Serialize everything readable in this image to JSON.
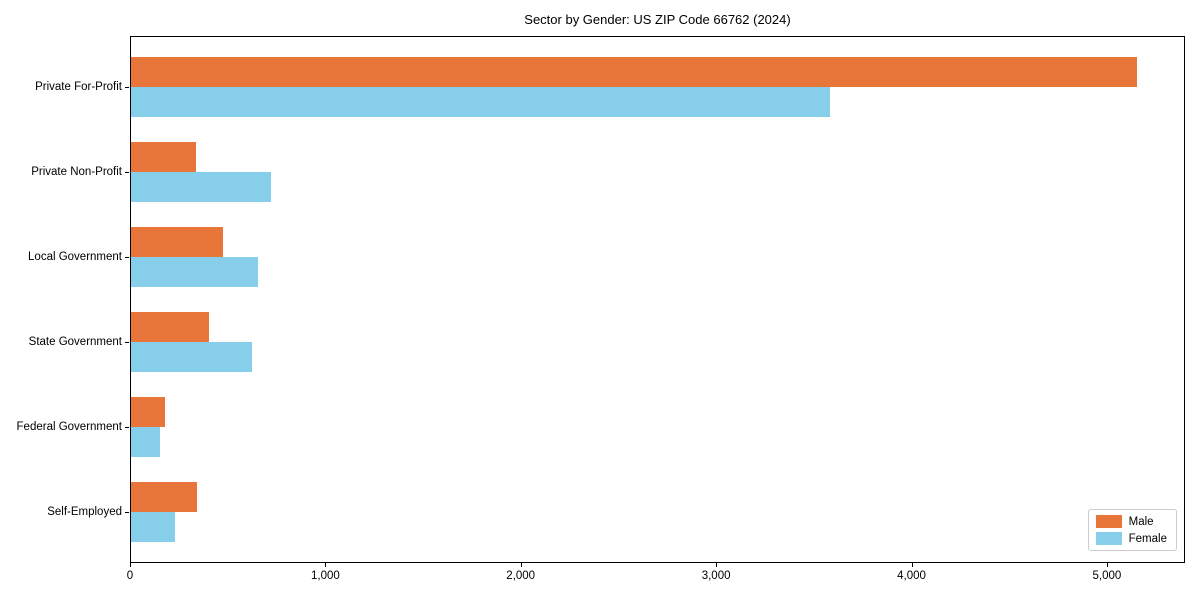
{
  "chart_data": {
    "type": "bar",
    "orientation": "horizontal",
    "title": "Sector by Gender: US ZIP Code 66762 (2024)",
    "categories": [
      "Private For-Profit",
      "Private Non-Profit",
      "Local Government",
      "State Government",
      "Federal Government",
      "Self-Employed"
    ],
    "series": [
      {
        "name": "Male",
        "color": "#E8763B",
        "values": [
          5150,
          335,
          470,
          400,
          175,
          340
        ]
      },
      {
        "name": "Female",
        "color": "#87CEEB",
        "values": [
          3580,
          715,
          650,
          620,
          150,
          225
        ]
      }
    ],
    "xlabel": "",
    "ylabel": "",
    "xlim": [
      0,
      5400
    ],
    "x_ticks": [
      {
        "value": 0,
        "label": "0"
      },
      {
        "value": 1000,
        "label": "1,000"
      },
      {
        "value": 2000,
        "label": "2,000"
      },
      {
        "value": 3000,
        "label": "3,000"
      },
      {
        "value": 4000,
        "label": "4,000"
      },
      {
        "value": 5000,
        "label": "5,000"
      }
    ],
    "grid": false,
    "legend_position": "lower right",
    "spines": "box",
    "axis_color": "#000000",
    "background_color": "#ffffff"
  }
}
